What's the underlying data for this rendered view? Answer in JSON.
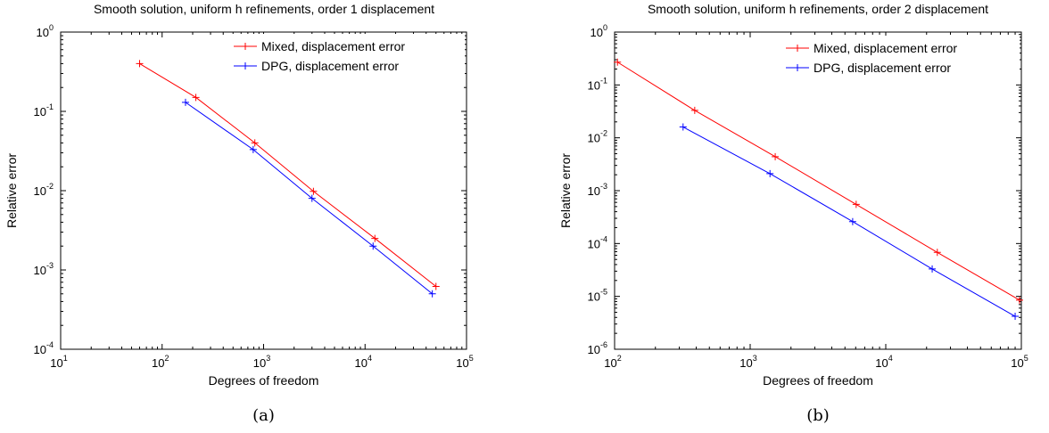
{
  "chart_data": [
    {
      "type": "line",
      "title": "Smooth solution, uniform h refinements, order 1 displacement",
      "xlabel": "Degrees of freedom",
      "ylabel": "Relative error",
      "xscale": "log",
      "yscale": "log",
      "xlim": [
        10,
        100000
      ],
      "ylim": [
        0.0001,
        1
      ],
      "x_ticks": [
        {
          "base": "10",
          "exp": "1"
        },
        {
          "base": "10",
          "exp": "2"
        },
        {
          "base": "10",
          "exp": "3"
        },
        {
          "base": "10",
          "exp": "4"
        },
        {
          "base": "10",
          "exp": "5"
        }
      ],
      "y_ticks": [
        {
          "base": "10",
          "exp": "-4"
        },
        {
          "base": "10",
          "exp": "-3"
        },
        {
          "base": "10",
          "exp": "-2"
        },
        {
          "base": "10",
          "exp": "-1"
        },
        {
          "base": "10",
          "exp": "0"
        }
      ],
      "grid": false,
      "legend_position": "top-right",
      "caption": "(a)",
      "series": [
        {
          "name": "Mixed, displacement error",
          "color": "#ff0000",
          "x": [
            60,
            215,
            820,
            3100,
            12500,
            50000
          ],
          "y": [
            0.4,
            0.15,
            0.04,
            0.0098,
            0.0025,
            0.00062
          ]
        },
        {
          "name": "DPG, displacement error",
          "color": "#0000ff",
          "x": [
            170,
            790,
            3000,
            12000,
            46000
          ],
          "y": [
            0.13,
            0.033,
            0.008,
            0.002,
            0.0005
          ]
        }
      ]
    },
    {
      "type": "line",
      "title": "Smooth solution, uniform h refinements, order 2 displacement",
      "xlabel": "Degrees of freedom",
      "ylabel": "Relative error",
      "xscale": "log",
      "yscale": "log",
      "xlim": [
        100,
        100000
      ],
      "ylim": [
        1e-06,
        1
      ],
      "x_ticks": [
        {
          "base": "10",
          "exp": "2"
        },
        {
          "base": "10",
          "exp": "3"
        },
        {
          "base": "10",
          "exp": "4"
        },
        {
          "base": "10",
          "exp": "5"
        }
      ],
      "y_ticks": [
        {
          "base": "10",
          "exp": "-6"
        },
        {
          "base": "10",
          "exp": "-5"
        },
        {
          "base": "10",
          "exp": "-4"
        },
        {
          "base": "10",
          "exp": "-3"
        },
        {
          "base": "10",
          "exp": "-2"
        },
        {
          "base": "10",
          "exp": "-1"
        },
        {
          "base": "10",
          "exp": "0"
        }
      ],
      "grid": false,
      "legend_position": "top-right",
      "caption": "(b)",
      "series": [
        {
          "name": "Mixed, displacement error",
          "color": "#ff0000",
          "x": [
            105,
            390,
            1530,
            6050,
            24000,
            97000
          ],
          "y": [
            0.27,
            0.033,
            0.0044,
            0.00055,
            6.8e-05,
            8.5e-06
          ]
        },
        {
          "name": "DPG, displacement error",
          "color": "#0000ff",
          "x": [
            320,
            1400,
            5700,
            22000,
            90000
          ],
          "y": [
            0.016,
            0.0021,
            0.00026,
            3.3e-05,
            4.2e-06
          ]
        }
      ]
    }
  ]
}
